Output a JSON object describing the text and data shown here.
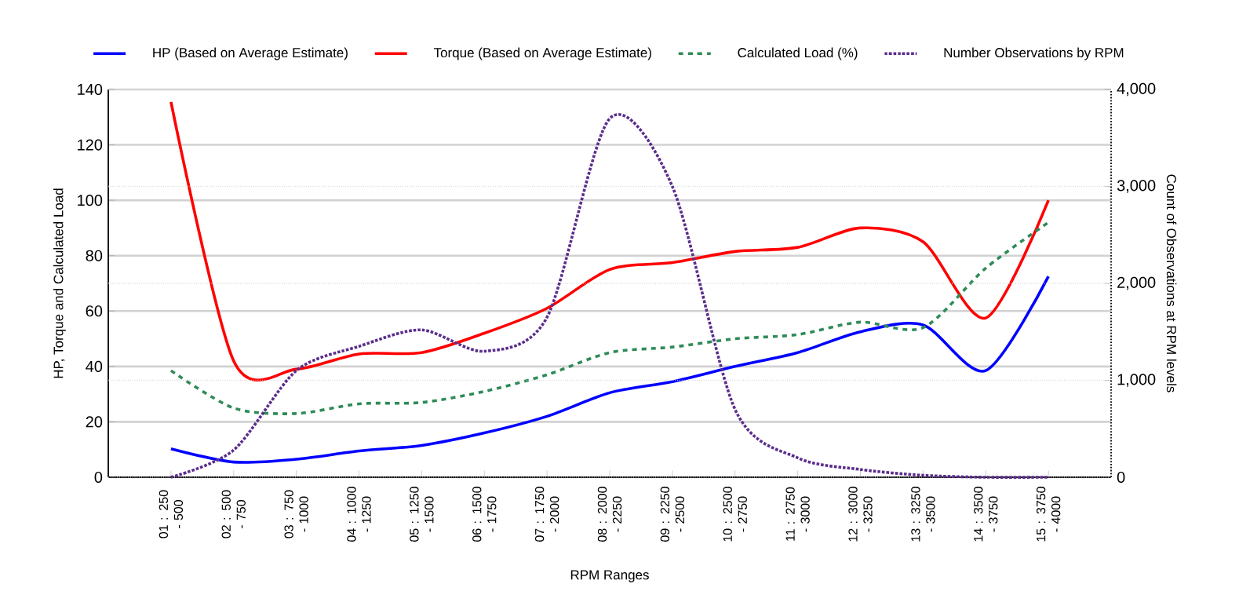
{
  "chart_data": {
    "type": "line",
    "xlabel": "RPM Ranges",
    "ylabel": "HP, Torque and Calculated Load",
    "y2label": "Count of Observations at RPM levels",
    "categories": [
      "01 : 250 - 500",
      "02 : 500 - 750",
      "03 : 750 - 1000",
      "04 : 1000 - 1250",
      "05 : 1250 - 1500",
      "06 : 1500 - 1750",
      "07 : 1750 - 2000",
      "08 : 2000 - 2250",
      "09 : 2250 - 2500",
      "10 : 2500 - 2750",
      "11 : 2750 - 3000",
      "12 : 3000 - 3250",
      "13 : 3250 - 3500",
      "14 : 3500 - 3750",
      "15 : 3750 - 4000"
    ],
    "series": [
      {
        "name": "HP (Based on Average Estimate)",
        "color": "#0000ff",
        "line_style": "solid",
        "values": [
          10.3,
          5.5,
          6.5,
          9.5,
          11.5,
          16,
          22,
          30.5,
          34.5,
          40,
          45,
          52.5,
          55,
          38.5,
          72.5
        ]
      },
      {
        "name": "Torque (Based on Average Estimate)",
        "color": "#ff0000",
        "line_style": "solid",
        "values": [
          135.5,
          42,
          39,
          44.5,
          45,
          52,
          61,
          75,
          77.5,
          81.5,
          83,
          90,
          85,
          57.5,
          100
        ]
      },
      {
        "name": "Calculated Load (%)",
        "color": "#2e8b57",
        "line_style": "dashed",
        "values": [
          38.5,
          25,
          23,
          26.5,
          27,
          31,
          37,
          45,
          47,
          50,
          51.5,
          56,
          54,
          75.5,
          92
        ]
      },
      {
        "name": "Number Observations by RPM",
        "color": "#5a2d8c",
        "line_style": "dotted",
        "axis": "y2",
        "values": [
          0,
          280,
          1100,
          1350,
          1520,
          1300,
          1650,
          3700,
          3000,
          700,
          200,
          80,
          20,
          0,
          0
        ]
      }
    ],
    "ylim": [
      0,
      140
    ],
    "yticks": [
      0,
      20,
      40,
      60,
      80,
      100,
      120,
      140
    ],
    "y2lim": [
      0,
      4000
    ],
    "y2ticks": [
      0,
      {
        "value": 1000,
        "label": "1,000"
      },
      {
        "value": 2000,
        "label": "2,000"
      },
      {
        "value": 3000,
        "label": "3,000"
      },
      {
        "value": 4000,
        "label": "4,000"
      }
    ],
    "grid": true,
    "legend": "top",
    "marker": "none"
  }
}
